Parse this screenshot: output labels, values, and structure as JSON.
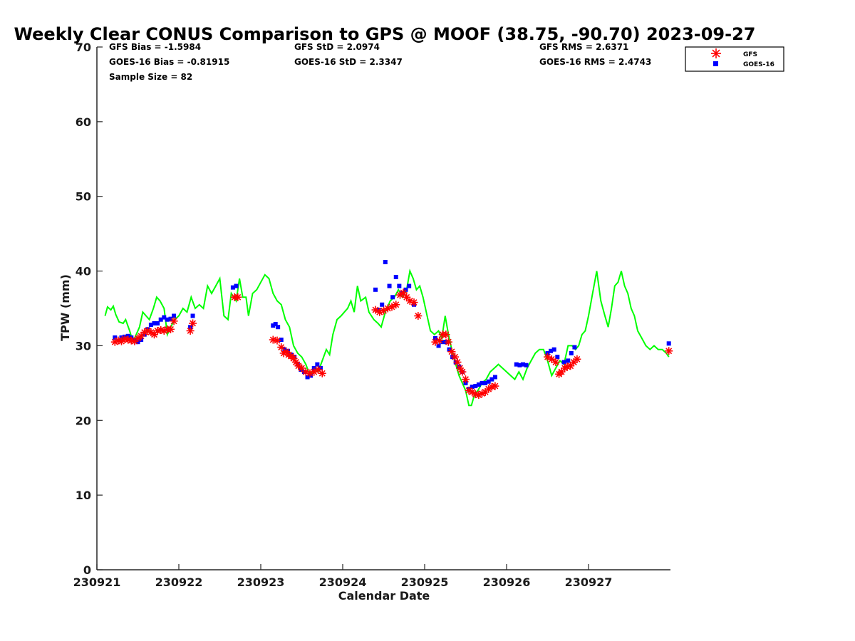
{
  "chart_data": {
    "type": "scatter",
    "title": "Weekly Clear CONUS Comparison to GPS @ MOOF (38.75, -90.70) 2023-09-27",
    "xlabel": "Calendar Date",
    "ylabel": "TPW (mm)",
    "xlim": [
      "230921",
      "230928"
    ],
    "ylim": [
      0,
      70
    ],
    "x_ticks": [
      "230921",
      "230922",
      "230923",
      "230924",
      "230925",
      "230926",
      "230927"
    ],
    "y_ticks": [
      0,
      10,
      20,
      30,
      40,
      50,
      60,
      70
    ],
    "x_unit": "days since 230921",
    "grid": false,
    "legend_position": "top-right",
    "stats": {
      "gfs_bias": "GFS Bias = -1.5984",
      "goes_bias": "GOES-16 Bias = -0.81915",
      "sample_size": "Sample Size = 82",
      "gfs_std": "GFS StD = 2.0974",
      "goes_std": "GOES-16 StD = 2.3347",
      "gfs_rms": "GFS RMS = 2.6371",
      "goes_rms": "GOES-16 RMS = 2.4743"
    },
    "series": [
      {
        "name": "GPS",
        "kind": "line",
        "color": "#00ff00",
        "points": [
          [
            0.1,
            34
          ],
          [
            0.13,
            35.2
          ],
          [
            0.17,
            34.8
          ],
          [
            0.2,
            35.3
          ],
          [
            0.23,
            34.2
          ],
          [
            0.27,
            33.2
          ],
          [
            0.32,
            33
          ],
          [
            0.35,
            33.5
          ],
          [
            0.4,
            32
          ],
          [
            0.44,
            30.5
          ],
          [
            0.48,
            31.5
          ],
          [
            0.52,
            32.5
          ],
          [
            0.56,
            34.5
          ],
          [
            0.6,
            34
          ],
          [
            0.64,
            33.5
          ],
          [
            0.69,
            35
          ],
          [
            0.73,
            36.5
          ],
          [
            0.77,
            36
          ],
          [
            0.82,
            35
          ],
          [
            0.86,
            31.5
          ],
          [
            0.9,
            32.5
          ],
          [
            0.95,
            33.5
          ],
          [
            1.0,
            34
          ],
          [
            1.05,
            35
          ],
          [
            1.1,
            34.5
          ],
          [
            1.15,
            36.5
          ],
          [
            1.2,
            35
          ],
          [
            1.25,
            35.5
          ],
          [
            1.3,
            35
          ],
          [
            1.35,
            38
          ],
          [
            1.4,
            37
          ],
          [
            1.45,
            38
          ],
          [
            1.5,
            39
          ],
          [
            1.55,
            34
          ],
          [
            1.6,
            33.5
          ],
          [
            1.64,
            37
          ],
          [
            1.7,
            36
          ],
          [
            1.74,
            39
          ],
          [
            1.78,
            36.5
          ],
          [
            1.82,
            36.5
          ],
          [
            1.85,
            34
          ],
          [
            1.9,
            37
          ],
          [
            1.95,
            37.5
          ],
          [
            2.0,
            38.5
          ],
          [
            2.05,
            39.5
          ],
          [
            2.1,
            39
          ],
          [
            2.15,
            37
          ],
          [
            2.2,
            36
          ],
          [
            2.25,
            35.5
          ],
          [
            2.3,
            33.5
          ],
          [
            2.35,
            32.5
          ],
          [
            2.4,
            30
          ],
          [
            2.45,
            29
          ],
          [
            2.5,
            28.5
          ],
          [
            2.55,
            27.5
          ],
          [
            2.6,
            26
          ],
          [
            2.65,
            27
          ],
          [
            2.7,
            26.5
          ],
          [
            2.75,
            28
          ],
          [
            2.8,
            29.5
          ],
          [
            2.84,
            28.8
          ],
          [
            2.88,
            31.5
          ],
          [
            2.93,
            33.5
          ],
          [
            2.98,
            34
          ],
          [
            3.02,
            34.5
          ],
          [
            3.06,
            35
          ],
          [
            3.1,
            36
          ],
          [
            3.14,
            34.5
          ],
          [
            3.18,
            38
          ],
          [
            3.22,
            36
          ],
          [
            3.28,
            36.5
          ],
          [
            3.32,
            34.5
          ],
          [
            3.38,
            33.5
          ],
          [
            3.43,
            33
          ],
          [
            3.47,
            32.5
          ],
          [
            3.52,
            34.5
          ],
          [
            3.58,
            36
          ],
          [
            3.63,
            36.5
          ],
          [
            3.68,
            37.5
          ],
          [
            3.73,
            36.5
          ],
          [
            3.78,
            37.5
          ],
          [
            3.82,
            40
          ],
          [
            3.86,
            39
          ],
          [
            3.9,
            37.5
          ],
          [
            3.94,
            38
          ],
          [
            3.98,
            36.5
          ],
          [
            4.02,
            34.5
          ],
          [
            4.07,
            32
          ],
          [
            4.12,
            31.5
          ],
          [
            4.17,
            32
          ],
          [
            4.21,
            31
          ],
          [
            4.25,
            34
          ],
          [
            4.29,
            31.5
          ],
          [
            4.33,
            29.5
          ],
          [
            4.38,
            27.5
          ],
          [
            4.42,
            26
          ],
          [
            4.46,
            25
          ],
          [
            4.5,
            24
          ],
          [
            4.54,
            22
          ],
          [
            4.57,
            22
          ],
          [
            4.61,
            23.5
          ],
          [
            4.65,
            24
          ],
          [
            4.7,
            25
          ],
          [
            4.75,
            25.5
          ],
          [
            4.8,
            26.5
          ],
          [
            4.85,
            27
          ],
          [
            4.9,
            27.5
          ],
          [
            5.0,
            26.5
          ],
          [
            5.1,
            25.5
          ],
          [
            5.15,
            26.5
          ],
          [
            5.2,
            25.5
          ],
          [
            5.25,
            27
          ],
          [
            5.3,
            28
          ],
          [
            5.35,
            29
          ],
          [
            5.4,
            29.5
          ],
          [
            5.45,
            29.5
          ],
          [
            5.5,
            28
          ],
          [
            5.55,
            26
          ],
          [
            5.6,
            27
          ],
          [
            5.65,
            28
          ],
          [
            5.7,
            27.5
          ],
          [
            5.75,
            30
          ],
          [
            5.8,
            30
          ],
          [
            5.84,
            29.5
          ],
          [
            5.88,
            30
          ],
          [
            5.92,
            31.5
          ],
          [
            5.96,
            32
          ],
          [
            6.0,
            34
          ],
          [
            6.05,
            37
          ],
          [
            6.1,
            40
          ],
          [
            6.15,
            36
          ],
          [
            6.2,
            34
          ],
          [
            6.24,
            32.5
          ],
          [
            6.28,
            35
          ],
          [
            6.32,
            38
          ],
          [
            6.36,
            38.5
          ],
          [
            6.4,
            40
          ],
          [
            6.44,
            38
          ],
          [
            6.48,
            37
          ],
          [
            6.52,
            35
          ],
          [
            6.56,
            34
          ],
          [
            6.6,
            32
          ],
          [
            6.65,
            31
          ],
          [
            6.7,
            30
          ],
          [
            6.75,
            29.5
          ],
          [
            6.8,
            30
          ],
          [
            6.85,
            29.5
          ],
          [
            6.9,
            29.5
          ],
          [
            6.95,
            29
          ],
          [
            6.98,
            28.5
          ]
        ]
      },
      {
        "name": "GFS",
        "kind": "star",
        "color": "#ff0000",
        "points": [
          [
            0.22,
            30.5
          ],
          [
            0.26,
            30.7
          ],
          [
            0.3,
            30.6
          ],
          [
            0.34,
            30.9
          ],
          [
            0.38,
            30.8
          ],
          [
            0.42,
            30.7
          ],
          [
            0.46,
            30.6
          ],
          [
            0.5,
            31
          ],
          [
            0.54,
            31.3
          ],
          [
            0.58,
            31.8
          ],
          [
            0.62,
            32
          ],
          [
            0.66,
            31.8
          ],
          [
            0.7,
            31.5
          ],
          [
            0.74,
            32
          ],
          [
            0.78,
            32.1
          ],
          [
            0.82,
            32
          ],
          [
            0.86,
            32.2
          ],
          [
            0.9,
            32.2
          ],
          [
            0.94,
            33.3
          ],
          [
            1.14,
            32
          ],
          [
            1.17,
            33
          ],
          [
            1.68,
            36.5
          ],
          [
            1.72,
            36.5
          ],
          [
            2.15,
            30.8
          ],
          [
            2.2,
            30.7
          ],
          [
            2.25,
            29.8
          ],
          [
            2.28,
            29
          ],
          [
            2.31,
            29.2
          ],
          [
            2.34,
            28.8
          ],
          [
            2.37,
            28.6
          ],
          [
            2.4,
            28.3
          ],
          [
            2.43,
            27.8
          ],
          [
            2.46,
            27.3
          ],
          [
            2.5,
            27
          ],
          [
            2.55,
            26.5
          ],
          [
            2.6,
            26.3
          ],
          [
            2.65,
            26.5
          ],
          [
            2.7,
            26.8
          ],
          [
            2.75,
            26.3
          ],
          [
            3.4,
            34.8
          ],
          [
            3.45,
            34.5
          ],
          [
            3.5,
            34.7
          ],
          [
            3.55,
            35
          ],
          [
            3.6,
            35.2
          ],
          [
            3.65,
            35.5
          ],
          [
            3.7,
            36.8
          ],
          [
            3.74,
            37.1
          ],
          [
            3.78,
            36.5
          ],
          [
            3.82,
            36
          ],
          [
            3.87,
            35.8
          ],
          [
            3.92,
            34
          ],
          [
            4.13,
            30.5
          ],
          [
            4.18,
            30.7
          ],
          [
            4.22,
            31.5
          ],
          [
            4.26,
            31.5
          ],
          [
            4.29,
            30.5
          ],
          [
            4.33,
            29.2
          ],
          [
            4.37,
            28.5
          ],
          [
            4.4,
            27.8
          ],
          [
            4.43,
            27
          ],
          [
            4.46,
            26.5
          ],
          [
            4.5,
            25.5
          ],
          [
            4.54,
            24
          ],
          [
            4.58,
            23.8
          ],
          [
            4.62,
            23.5
          ],
          [
            4.66,
            23.4
          ],
          [
            4.7,
            23.6
          ],
          [
            4.74,
            23.8
          ],
          [
            4.78,
            24.2
          ],
          [
            4.82,
            24.5
          ],
          [
            4.86,
            24.6
          ],
          [
            5.5,
            28.5
          ],
          [
            5.55,
            28.2
          ],
          [
            5.6,
            27.8
          ],
          [
            5.64,
            26.2
          ],
          [
            5.67,
            26.5
          ],
          [
            5.71,
            27
          ],
          [
            5.74,
            27.2
          ],
          [
            5.78,
            27.3
          ],
          [
            5.82,
            27.8
          ],
          [
            5.86,
            28.2
          ],
          [
            6.98,
            29.3
          ]
        ]
      },
      {
        "name": "GOES-16",
        "kind": "square",
        "color": "#0000ff",
        "points": [
          [
            0.22,
            31.1
          ],
          [
            0.3,
            31.1
          ],
          [
            0.34,
            31.2
          ],
          [
            0.38,
            31.3
          ],
          [
            0.42,
            31.1
          ],
          [
            0.46,
            30.8
          ],
          [
            0.5,
            30.5
          ],
          [
            0.54,
            30.8
          ],
          [
            0.58,
            31.5
          ],
          [
            0.62,
            32.2
          ],
          [
            0.66,
            32.8
          ],
          [
            0.7,
            33
          ],
          [
            0.74,
            33
          ],
          [
            0.78,
            33.5
          ],
          [
            0.82,
            33.8
          ],
          [
            0.86,
            33.5
          ],
          [
            0.9,
            33.6
          ],
          [
            0.94,
            34
          ],
          [
            1.14,
            32.5
          ],
          [
            1.17,
            34
          ],
          [
            1.66,
            37.8
          ],
          [
            1.7,
            38
          ],
          [
            2.15,
            32.7
          ],
          [
            2.18,
            32.9
          ],
          [
            2.21,
            32.5
          ],
          [
            2.25,
            30.8
          ],
          [
            2.29,
            29.5
          ],
          [
            2.33,
            29.3
          ],
          [
            2.37,
            28.8
          ],
          [
            2.41,
            28.5
          ],
          [
            2.45,
            27.5
          ],
          [
            2.49,
            26.8
          ],
          [
            2.53,
            26.5
          ],
          [
            2.57,
            25.8
          ],
          [
            2.61,
            26
          ],
          [
            2.65,
            27
          ],
          [
            2.69,
            27.5
          ],
          [
            2.73,
            27
          ],
          [
            3.4,
            37.5
          ],
          [
            3.44,
            34.8
          ],
          [
            3.48,
            35.5
          ],
          [
            3.52,
            41.2
          ],
          [
            3.57,
            38
          ],
          [
            3.61,
            36.5
          ],
          [
            3.65,
            39.2
          ],
          [
            3.69,
            38
          ],
          [
            3.73,
            37
          ],
          [
            3.77,
            37.5
          ],
          [
            3.81,
            38
          ],
          [
            3.87,
            35.5
          ],
          [
            4.13,
            31
          ],
          [
            4.17,
            30
          ],
          [
            4.22,
            30.5
          ],
          [
            4.26,
            30.5
          ],
          [
            4.3,
            29.5
          ],
          [
            4.34,
            28.5
          ],
          [
            4.38,
            27.8
          ],
          [
            4.42,
            27.2
          ],
          [
            4.46,
            26.5
          ],
          [
            4.5,
            25
          ],
          [
            4.54,
            24.2
          ],
          [
            4.58,
            24.5
          ],
          [
            4.62,
            24.6
          ],
          [
            4.66,
            24.8
          ],
          [
            4.7,
            25
          ],
          [
            4.74,
            25
          ],
          [
            4.78,
            25.2
          ],
          [
            4.82,
            25.5
          ],
          [
            4.86,
            25.8
          ],
          [
            5.12,
            27.5
          ],
          [
            5.16,
            27.4
          ],
          [
            5.2,
            27.5
          ],
          [
            5.24,
            27.4
          ],
          [
            5.5,
            29
          ],
          [
            5.54,
            29.3
          ],
          [
            5.58,
            29.5
          ],
          [
            5.62,
            28.5
          ],
          [
            5.7,
            27.8
          ],
          [
            5.75,
            28
          ],
          [
            5.79,
            29
          ],
          [
            5.83,
            29.8
          ],
          [
            6.98,
            30.3
          ]
        ]
      }
    ]
  }
}
